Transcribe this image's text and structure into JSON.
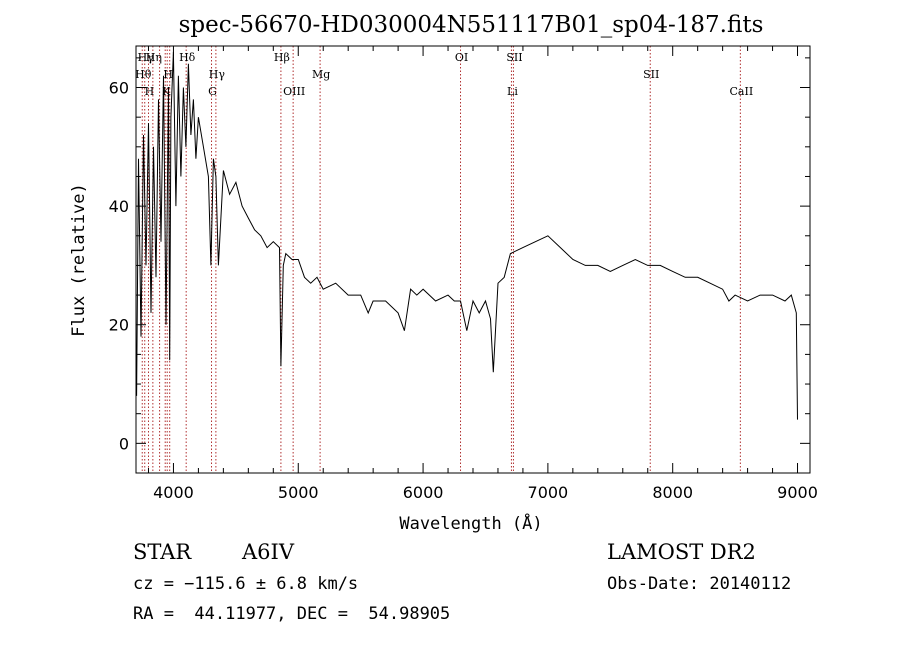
{
  "chart_data": {
    "type": "line",
    "title": "spec-56670-HD030004N551117B01_sp04-187.fits",
    "xlabel": "Wavelength (Å)",
    "ylabel": "Flux (relative)",
    "xlim": [
      3700,
      9100
    ],
    "ylim": [
      -5,
      67
    ],
    "x_ticks": [
      4000,
      5000,
      6000,
      7000,
      8000,
      9000
    ],
    "x_tick_labels": [
      "4000",
      "5000",
      "6000",
      "7000",
      "8000",
      "9000"
    ],
    "y_ticks": [
      0,
      20,
      40,
      60
    ],
    "y_tick_labels": [
      "0",
      "20",
      "40",
      "60"
    ],
    "grid": false,
    "series": [
      {
        "color": "#000000",
        "x": [
          3705,
          3720,
          3740,
          3760,
          3780,
          3800,
          3820,
          3840,
          3860,
          3880,
          3900,
          3920,
          3940,
          3960,
          3970,
          3980,
          4000,
          4020,
          4040,
          4060,
          4080,
          4100,
          4120,
          4140,
          4160,
          4180,
          4200,
          4240,
          4280,
          4300,
          4320,
          4340,
          4360,
          4400,
          4450,
          4500,
          4550,
          4600,
          4650,
          4700,
          4750,
          4800,
          4850,
          4861,
          4880,
          4900,
          4950,
          5000,
          5050,
          5100,
          5150,
          5200,
          5300,
          5400,
          5500,
          5560,
          5600,
          5700,
          5800,
          5850,
          5900,
          5950,
          6000,
          6100,
          6200,
          6250,
          6300,
          6350,
          6400,
          6450,
          6500,
          6540,
          6563,
          6600,
          6650,
          6700,
          6800,
          6900,
          7000,
          7100,
          7200,
          7300,
          7400,
          7500,
          7600,
          7700,
          7800,
          7900,
          8000,
          8100,
          8200,
          8300,
          8400,
          8450,
          8500,
          8600,
          8700,
          8800,
          8900,
          8950,
          8990,
          9000
        ],
        "y": [
          8,
          48,
          18,
          52,
          30,
          54,
          22,
          50,
          28,
          58,
          34,
          62,
          20,
          60,
          14,
          55,
          66,
          40,
          62,
          45,
          60,
          50,
          64,
          52,
          58,
          48,
          55,
          50,
          45,
          30,
          48,
          45,
          30,
          46,
          42,
          44,
          40,
          38,
          36,
          35,
          33,
          34,
          33,
          13,
          30,
          32,
          31,
          31,
          28,
          27,
          28,
          26,
          27,
          25,
          25,
          22,
          24,
          24,
          22,
          19,
          26,
          25,
          26,
          24,
          25,
          24,
          24,
          19,
          24,
          22,
          24,
          21,
          12,
          27,
          28,
          32,
          33,
          34,
          35,
          33,
          31,
          30,
          30,
          29,
          30,
          31,
          30,
          30,
          29,
          28,
          28,
          27,
          26,
          24,
          25,
          24,
          25,
          25,
          24,
          25,
          22,
          4
        ]
      }
    ],
    "lines": [
      {
        "x": 3750,
        "label": "Hθ",
        "row": 2
      },
      {
        "x": 3770,
        "label": "Hγ",
        "row": 1
      },
      {
        "x": 3800,
        "label": "H",
        "row": 3
      },
      {
        "x": 3835,
        "label": "Hη",
        "row": 1
      },
      {
        "x": 3889,
        "label": "",
        "row": 0
      },
      {
        "x": 3934,
        "label": "K",
        "row": 3
      },
      {
        "x": 3950,
        "label": "H",
        "row": 2
      },
      {
        "x": 3970,
        "label": "",
        "row": 0
      },
      {
        "x": 4102,
        "label": "Hδ",
        "row": 1
      },
      {
        "x": 4305,
        "label": "G",
        "row": 3
      },
      {
        "x": 4340,
        "label": "Hγ",
        "row": 2
      },
      {
        "x": 4861,
        "label": "Hβ",
        "row": 1
      },
      {
        "x": 4959,
        "label": "OIII",
        "row": 3
      },
      {
        "x": 5175,
        "label": "Mg",
        "row": 2
      },
      {
        "x": 6300,
        "label": "OI",
        "row": 1
      },
      {
        "x": 6708,
        "label": "Li",
        "row": 3
      },
      {
        "x": 6724,
        "label": "SII",
        "row": 1
      },
      {
        "x": 7820,
        "label": "SII",
        "row": 2
      },
      {
        "x": 8542,
        "label": "CaII",
        "row": 3
      }
    ]
  },
  "info": {
    "object_type": "STAR",
    "subclass": "A6IV",
    "survey": "LAMOST DR2",
    "velocity": "cz = −115.6 ± 6.8 km/s",
    "obs_date": "Obs-Date: 20140112",
    "coords": "RA =  44.11977, DEC =  54.98905"
  }
}
